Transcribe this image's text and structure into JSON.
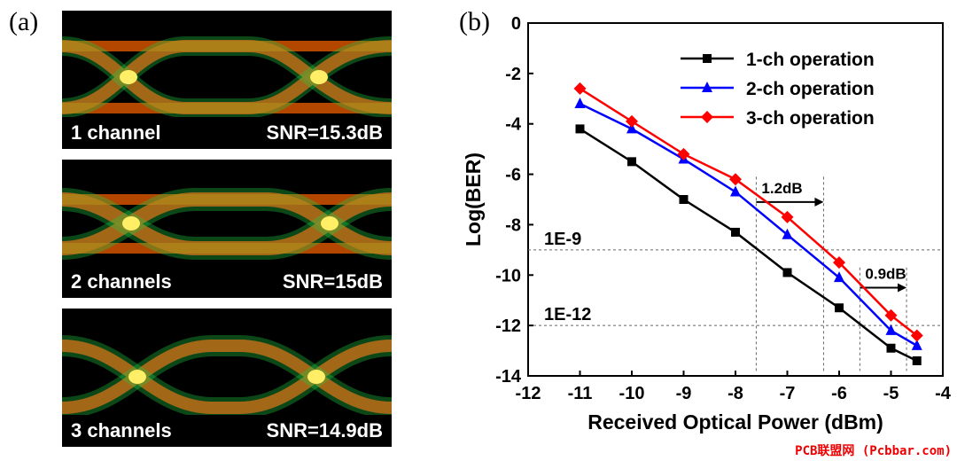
{
  "panel_a": {
    "label": "(a)",
    "eyes": [
      {
        "caption_left": "1 channel",
        "caption_right": "SNR=15.3dB"
      },
      {
        "caption_left": "2 channels",
        "caption_right": "SNR=15dB"
      },
      {
        "caption_left": "3 channels",
        "caption_right": "SNR=14.9dB"
      }
    ]
  },
  "panel_b": {
    "label": "(b)"
  },
  "chart_data": {
    "type": "line",
    "xlabel": "Received Optical Power (dBm)",
    "ylabel": "Log(BER)",
    "xlim": [
      -12,
      -4
    ],
    "ylim": [
      -14,
      0
    ],
    "xticks": [
      -12,
      -11,
      -10,
      -9,
      -8,
      -7,
      -6,
      -5,
      -4
    ],
    "yticks": [
      0,
      -2,
      -4,
      -6,
      -8,
      -10,
      -12,
      -14
    ],
    "legend_position": "top-right",
    "series": [
      {
        "name": "1-ch operation",
        "color": "#000000",
        "marker": "square",
        "x": [
          -11,
          -10,
          -9,
          -8,
          -7,
          -6,
          -5,
          -4.5
        ],
        "y": [
          -4.2,
          -5.5,
          -7.0,
          -8.3,
          -9.9,
          -11.3,
          -12.9,
          -13.4
        ]
      },
      {
        "name": "2-ch operation",
        "color": "#0000ff",
        "marker": "triangle",
        "x": [
          -11,
          -10,
          -9,
          -8,
          -7,
          -6,
          -5,
          -4.5
        ],
        "y": [
          -3.2,
          -4.2,
          -5.4,
          -6.7,
          -8.4,
          -10.1,
          -12.2,
          -12.8
        ]
      },
      {
        "name": "3-ch operation",
        "color": "#ff0000",
        "marker": "diamond",
        "x": [
          -11,
          -10,
          -9,
          -8,
          -7,
          -6,
          -5,
          -4.5
        ],
        "y": [
          -2.6,
          -3.9,
          -5.2,
          -6.2,
          -7.7,
          -9.5,
          -11.6,
          -12.4
        ]
      }
    ],
    "reference_lines": [
      {
        "label": "1E-9",
        "y": -9
      },
      {
        "label": "1E-12",
        "y": -12
      }
    ],
    "annotations": [
      {
        "text": "1.2dB",
        "x_from": -7.6,
        "x_to": -6.3,
        "y": -7.1
      },
      {
        "text": "0.9dB",
        "x_from": -5.6,
        "x_to": -4.7,
        "y": -10.5
      }
    ],
    "dashed_verticals": [
      -7.6,
      -6.3,
      -5.6,
      -4.7
    ]
  },
  "watermark": "PCB联盟网 (Pcbbar.com)"
}
